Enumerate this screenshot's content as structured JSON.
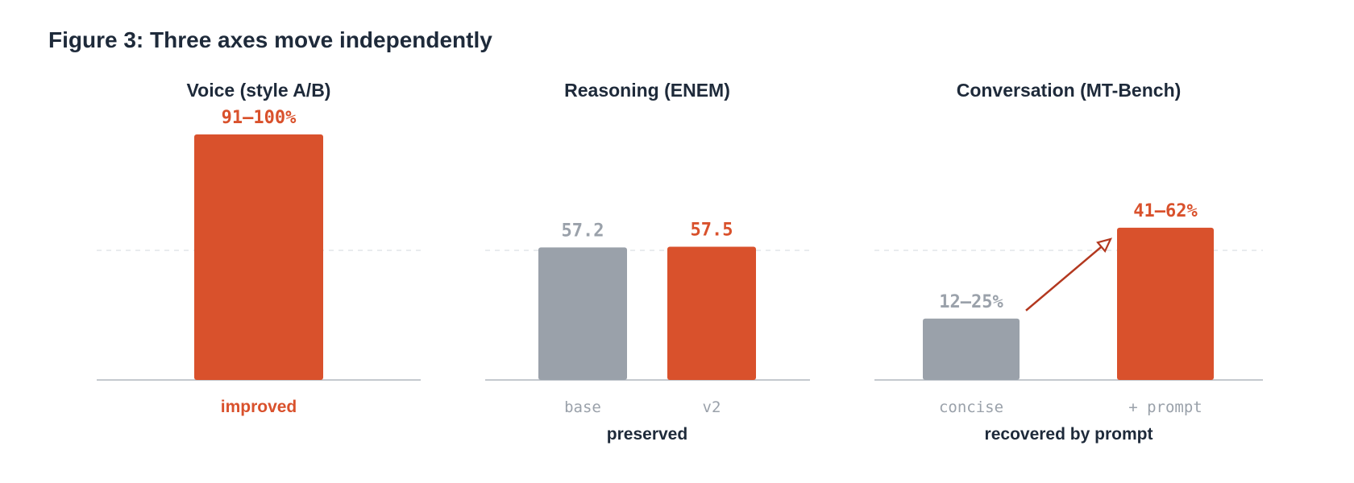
{
  "title": "Figure 3: Three axes move independently",
  "colors": {
    "accent": "#d9512c",
    "neutral": "#9aa1aa",
    "text": "#1e2a3a",
    "arrow": "#b3381f"
  },
  "chart_data": [
    {
      "type": "bar",
      "title": "Voice (style A/B)",
      "categories": [
        ""
      ],
      "values": [
        [
          91,
          100
        ]
      ],
      "data_labels": [
        "91–100%"
      ],
      "colors": [
        "accent"
      ],
      "verdict": "improved",
      "verdict_color": "accent",
      "ylim": [
        0,
        100
      ]
    },
    {
      "type": "bar",
      "title": "Reasoning (ENEM)",
      "categories": [
        "base",
        "v2"
      ],
      "values": [
        57.2,
        57.5
      ],
      "data_labels": [
        "57.2",
        "57.5"
      ],
      "colors": [
        "neutral",
        "accent"
      ],
      "verdict": "preserved",
      "verdict_color": "text",
      "ylim": [
        0,
        106
      ]
    },
    {
      "type": "bar",
      "title": "Conversation (MT-Bench)",
      "categories": [
        "concise",
        "+ prompt"
      ],
      "values": [
        [
          12,
          25
        ],
        [
          41,
          62
        ]
      ],
      "data_labels": [
        "12–25%",
        "41–62%"
      ],
      "colors": [
        "neutral",
        "accent"
      ],
      "verdict": "recovered by prompt",
      "verdict_color": "text",
      "ylim": [
        0,
        100
      ],
      "arrow": {
        "from": "concise",
        "to": "+ prompt"
      }
    }
  ]
}
